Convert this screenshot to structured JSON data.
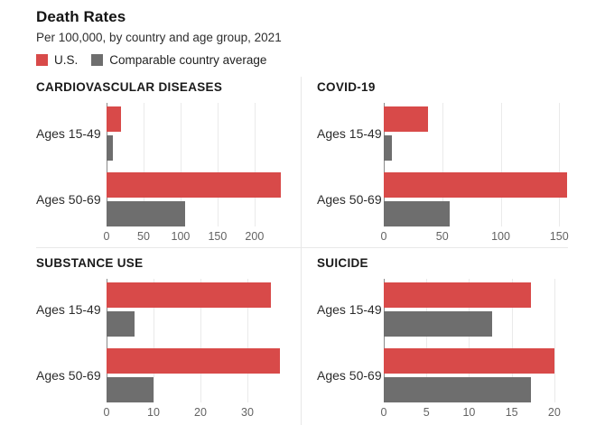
{
  "header": {
    "title": "Death Rates",
    "subtitle": "Per 100,000, by country and age group, 2021"
  },
  "legend": {
    "us_label": "U.S.",
    "comparable_label": "Comparable country average"
  },
  "colors": {
    "us_red": "#d84a49",
    "comparable_gray": "#6e6e6e",
    "gridline": "#eaeaea",
    "zero_axis": "#8a8a8a",
    "divider": "#e8e8e8"
  },
  "chart_data": [
    {
      "type": "bar",
      "orientation": "horizontal",
      "title": "CARDIOVASCULAR DISEASES",
      "categories": [
        "Ages 15-49",
        "Ages 50-69"
      ],
      "series": [
        {
          "name": "U.S.",
          "values": [
            20,
            235
          ]
        },
        {
          "name": "Comparable country average",
          "values": [
            8,
            106
          ]
        }
      ],
      "ticks": [
        0,
        50,
        100,
        150,
        200
      ],
      "xlim": [
        0,
        238
      ],
      "grid": true,
      "legend_position": "top-shared"
    },
    {
      "type": "bar",
      "orientation": "horizontal",
      "title": "COVID-19",
      "categories": [
        "Ages 15-49",
        "Ages 50-69"
      ],
      "series": [
        {
          "name": "U.S.",
          "values": [
            38,
            157
          ]
        },
        {
          "name": "Comparable country average",
          "values": [
            7,
            56
          ]
        }
      ],
      "ticks": [
        0,
        50,
        100,
        150
      ],
      "xlim": [
        0,
        157.5
      ],
      "grid": true,
      "legend_position": "top-shared"
    },
    {
      "type": "bar",
      "orientation": "horizontal",
      "title": "SUBSTANCE USE",
      "categories": [
        "Ages 15-49",
        "Ages 50-69"
      ],
      "series": [
        {
          "name": "U.S.",
          "values": [
            35,
            37
          ]
        },
        {
          "name": "Comparable country average",
          "values": [
            6,
            10
          ]
        }
      ],
      "ticks": [
        0,
        10,
        20,
        30
      ],
      "xlim": [
        0,
        37.5
      ],
      "grid": true,
      "legend_position": "top-shared"
    },
    {
      "type": "bar",
      "orientation": "horizontal",
      "title": "SUICIDE",
      "categories": [
        "Ages 15-49",
        "Ages 50-69"
      ],
      "series": [
        {
          "name": "U.S.",
          "values": [
            17.3,
            20
          ]
        },
        {
          "name": "Comparable country average",
          "values": [
            12.7,
            17.3
          ]
        }
      ],
      "ticks": [
        0,
        5,
        10,
        15,
        20
      ],
      "xlim": [
        0,
        21.6
      ],
      "grid": true,
      "legend_position": "top-shared"
    }
  ]
}
